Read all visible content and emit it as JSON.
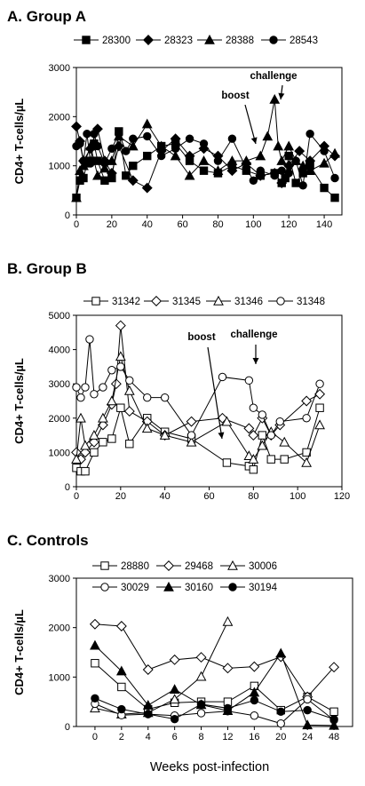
{
  "chart_data": [
    {
      "type": "line",
      "title": "A.  Group A",
      "ylabel": "CD4+ T-cells/µL",
      "xlabel": "",
      "ylim": [
        0,
        3000
      ],
      "xlim": [
        0,
        150
      ],
      "yticks": [
        0,
        1000,
        2000,
        3000
      ],
      "xticks": [
        0,
        20,
        40,
        60,
        80,
        100,
        120,
        140
      ],
      "grid": false,
      "legend_position": "top",
      "series": [
        {
          "name": "28300",
          "marker": "square-filled",
          "x": [
            0,
            2,
            4,
            6,
            8,
            10,
            12,
            16,
            20,
            24,
            28,
            32,
            40,
            48,
            56,
            64,
            72,
            80,
            88,
            96,
            104,
            112,
            116,
            118,
            120,
            124,
            128,
            132,
            140,
            146
          ],
          "y": [
            350,
            700,
            750,
            1050,
            1100,
            1450,
            1100,
            700,
            750,
            1700,
            800,
            1000,
            1200,
            1400,
            1450,
            1100,
            900,
            850,
            1000,
            900,
            800,
            850,
            650,
            750,
            1200,
            650,
            850,
            1000,
            550,
            350
          ]
        },
        {
          "name": "28323",
          "marker": "diamond-filled",
          "x": [
            0,
            2,
            4,
            8,
            12,
            16,
            20,
            24,
            32,
            40,
            48,
            56,
            64,
            72,
            80,
            88,
            96,
            104,
            112,
            116,
            120,
            126,
            132,
            140,
            146
          ],
          "y": [
            1800,
            1500,
            1100,
            1350,
            1750,
            1100,
            850,
            1400,
            700,
            550,
            1300,
            1550,
            1200,
            1350,
            1200,
            900,
            1050,
            800,
            850,
            650,
            1000,
            1300,
            1100,
            1400,
            1200
          ]
        },
        {
          "name": "28388",
          "marker": "triangle-filled",
          "x": [
            0,
            2,
            4,
            8,
            12,
            16,
            20,
            24,
            32,
            40,
            48,
            56,
            64,
            72,
            80,
            88,
            96,
            104,
            108,
            112,
            114,
            116,
            120,
            124,
            128,
            132,
            140,
            146
          ],
          "y": [
            350,
            900,
            1000,
            1400,
            800,
            950,
            1100,
            1600,
            1400,
            1850,
            1400,
            1200,
            800,
            1100,
            900,
            1100,
            1100,
            1200,
            1600,
            2350,
            1400,
            1100,
            1400,
            1100,
            1000,
            900,
            1050,
            1250
          ]
        },
        {
          "name": "28543",
          "marker": "circle-filled",
          "x": [
            0,
            2,
            4,
            6,
            8,
            10,
            12,
            16,
            20,
            24,
            28,
            32,
            40,
            48,
            56,
            64,
            72,
            80,
            88,
            96,
            100,
            104,
            112,
            116,
            120,
            124,
            128,
            132,
            140,
            146
          ],
          "y": [
            1400,
            1450,
            1100,
            1650,
            1050,
            1650,
            1400,
            1050,
            1350,
            1650,
            1300,
            1550,
            1600,
            1200,
            1350,
            1550,
            1450,
            1100,
            1550,
            950,
            700,
            900,
            800,
            900,
            850,
            1100,
            600,
            1650,
            1300,
            750
          ]
        }
      ],
      "annotations": [
        "challenge",
        "boost"
      ]
    },
    {
      "type": "line",
      "title": "B.  Group B",
      "ylabel": "CD4+ T-cells/µL",
      "xlabel": "",
      "ylim": [
        0,
        5000
      ],
      "xlim": [
        0,
        120
      ],
      "yticks": [
        0,
        1000,
        2000,
        3000,
        4000,
        5000
      ],
      "xticks": [
        0,
        20,
        40,
        60,
        80,
        100,
        120
      ],
      "grid": false,
      "legend_position": "top",
      "series": [
        {
          "name": "31342",
          "marker": "square-open",
          "x": [
            0,
            2,
            4,
            8,
            12,
            16,
            20,
            24,
            32,
            40,
            52,
            68,
            78,
            80,
            84,
            88,
            94,
            104,
            110
          ],
          "y": [
            550,
            450,
            450,
            1000,
            1300,
            1400,
            2300,
            1250,
            2000,
            1600,
            1400,
            700,
            600,
            500,
            1500,
            800,
            800,
            1000,
            2300
          ]
        },
        {
          "name": "31345",
          "marker": "diamond-open",
          "x": [
            0,
            2,
            4,
            8,
            12,
            16,
            18,
            20,
            24,
            32,
            40,
            52,
            66,
            78,
            80,
            84,
            88,
            92,
            104,
            110
          ],
          "y": [
            1000,
            800,
            1000,
            1300,
            1800,
            2400,
            3000,
            4700,
            2200,
            1900,
            1500,
            1900,
            2000,
            1700,
            1500,
            2000,
            1500,
            1800,
            2500,
            2700
          ]
        },
        {
          "name": "31346",
          "marker": "triangle-open",
          "x": [
            0,
            2,
            4,
            8,
            12,
            16,
            20,
            24,
            32,
            40,
            52,
            68,
            78,
            80,
            84,
            88,
            94,
            104,
            110
          ],
          "y": [
            800,
            2000,
            1200,
            1500,
            2000,
            2500,
            3800,
            2800,
            1700,
            1500,
            1300,
            1900,
            900,
            800,
            1200,
            1600,
            1300,
            700,
            1800
          ]
        },
        {
          "name": "31348",
          "marker": "circle-open",
          "x": [
            0,
            2,
            4,
            6,
            8,
            12,
            16,
            20,
            24,
            32,
            40,
            52,
            66,
            78,
            80,
            84,
            88,
            92,
            104,
            110
          ],
          "y": [
            2900,
            2600,
            2900,
            4300,
            2700,
            2900,
            3400,
            3500,
            3100,
            2600,
            2600,
            1500,
            3200,
            3100,
            2300,
            2100,
            1500,
            1900,
            2000,
            3000
          ]
        }
      ],
      "annotations": [
        "boost",
        "challenge"
      ]
    },
    {
      "type": "line",
      "title": "C.  Controls",
      "ylabel": "CD4+ T-cells/µL",
      "xlabel": "Weeks post-infection",
      "ylim": [
        0,
        3000
      ],
      "categories": [
        "0",
        "2",
        "4",
        "6",
        "8",
        "12",
        "16",
        "20",
        "24",
        "48"
      ],
      "yticks": [
        0,
        1000,
        2000,
        3000
      ],
      "grid": false,
      "legend_position": "top",
      "series": [
        {
          "name": "28880",
          "marker": "square-open",
          "x": [
            "0",
            "2",
            "4",
            "6",
            "8",
            "12",
            "16",
            "20",
            "24",
            "48"
          ],
          "y": [
            1280,
            800,
            350,
            480,
            500,
            500,
            820,
            330,
            600,
            300
          ]
        },
        {
          "name": "29468",
          "marker": "diamond-open",
          "x": [
            "0",
            "2",
            "4",
            "6",
            "8",
            "12",
            "16",
            "20",
            "24",
            "48"
          ],
          "y": [
            2070,
            2030,
            1150,
            1350,
            1400,
            1180,
            1210,
            1410,
            600,
            1200
          ]
        },
        {
          "name": "30006",
          "marker": "triangle-open",
          "x": [
            "0",
            "2",
            "4",
            "6",
            "8",
            "12"
          ],
          "y": [
            370,
            250,
            280,
            550,
            1010,
            2120
          ]
        },
        {
          "name": "30029",
          "marker": "circle-open",
          "x": [
            "0",
            "2",
            "4",
            "6",
            "8",
            "12",
            "16",
            "20",
            "24",
            "48"
          ],
          "y": [
            460,
            230,
            250,
            220,
            270,
            310,
            220,
            60,
            550,
            130
          ]
        },
        {
          "name": "30160",
          "marker": "triangle-filled",
          "x": [
            "0",
            "2",
            "4",
            "6",
            "8",
            "12",
            "16",
            "20",
            "24",
            "48"
          ],
          "y": [
            1640,
            1120,
            430,
            750,
            440,
            320,
            690,
            1480,
            30,
            20
          ]
        },
        {
          "name": "30194",
          "marker": "circle-filled",
          "x": [
            "0",
            "2",
            "4",
            "6",
            "8",
            "12",
            "16",
            "20",
            "24",
            "48"
          ],
          "y": [
            570,
            350,
            250,
            150,
            450,
            370,
            530,
            300,
            330,
            150
          ]
        }
      ]
    }
  ]
}
